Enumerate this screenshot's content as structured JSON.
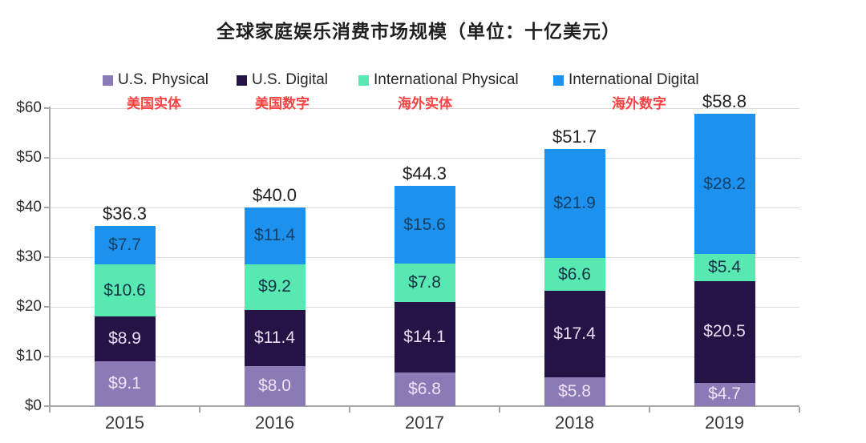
{
  "chart_data": {
    "type": "bar",
    "stacked": true,
    "title": "全球家庭娱乐消费市场规模（单位：十亿美元）",
    "value_prefix": "$",
    "categories": [
      "2015",
      "2016",
      "2017",
      "2018",
      "2019"
    ],
    "series": [
      {
        "name": "U.S. Physical",
        "annotation_zh": "美国实体",
        "color": "#8a7ab5",
        "label_color": "#f0e2f6",
        "values": [
          9.1,
          8.0,
          6.8,
          5.8,
          4.7
        ]
      },
      {
        "name": "U.S. Digital",
        "annotation_zh": "美国数字",
        "color": "#261345",
        "label_color": "#e7def2",
        "values": [
          8.9,
          11.4,
          14.1,
          17.4,
          20.5
        ]
      },
      {
        "name": "International Physical",
        "annotation_zh": "海外实体",
        "color": "#58e8b2",
        "label_color": "#153246",
        "values": [
          10.6,
          9.2,
          7.8,
          6.6,
          5.4
        ]
      },
      {
        "name": "International Digital",
        "annotation_zh": "海外数字",
        "color": "#1d91ee",
        "label_color": "#164165",
        "values": [
          7.7,
          11.4,
          15.6,
          21.9,
          28.2
        ]
      }
    ],
    "totals": [
      36.3,
      40.0,
      44.3,
      51.7,
      58.8
    ],
    "y_axis": {
      "min": 0,
      "max": 60,
      "tick_labels": [
        "$0",
        "$10",
        "$20",
        "$30",
        "$40",
        "$50",
        "$60"
      ]
    },
    "grid": true,
    "legend_position": "top",
    "annotation_color": "#f94343",
    "colors": {
      "gridline": "#dadada",
      "axis": "#a6a6a6",
      "total_label": "#212121"
    }
  }
}
